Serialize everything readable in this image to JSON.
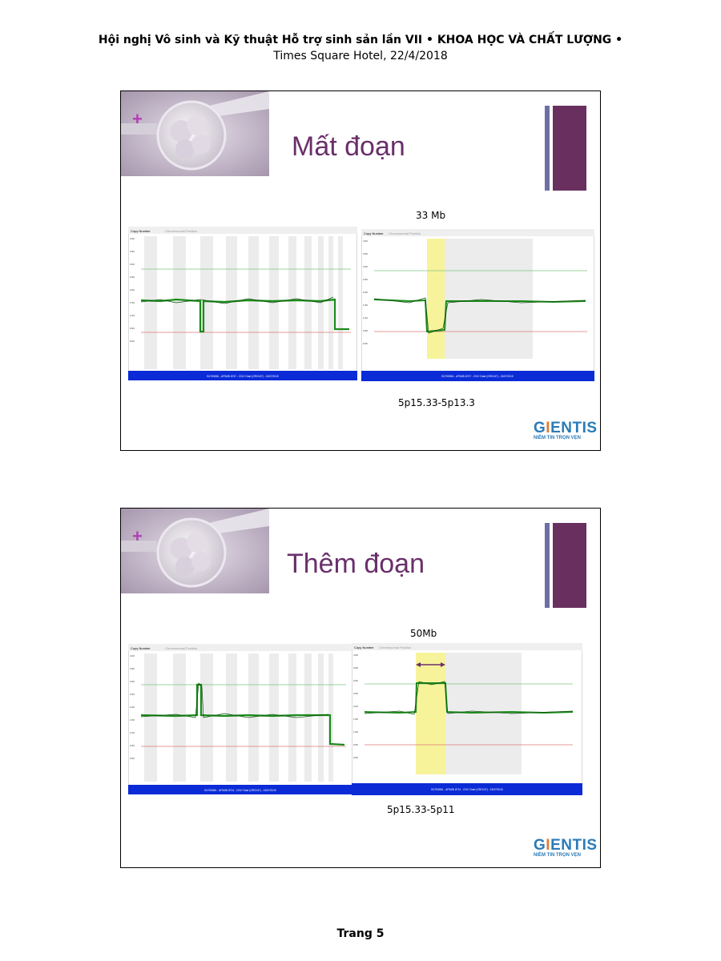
{
  "header": {
    "line1": "Hội nghị Vô sinh và Kỹ thuật Hỗ trợ sinh sản lần VII  •  KHOA HỌC VÀ CHẤT LƯỢNG •",
    "line2": "Times Square Hotel, 22/4/2018"
  },
  "slides": [
    {
      "title": "Mất đoạn",
      "size_label": "33 Mb",
      "region_label": "5p15.33-5p13.3",
      "plot_tab_label": "Copy Number",
      "plot_tab2_label": "Chromosomal Position",
      "plot_footer": "B17H0861 - AF5UBI 8747 - CNV Chart (GRCh37) - 24/07/2015",
      "logo": {
        "main_a": "G",
        "main_x": "I",
        "main_b": "ENTIS",
        "sub": "NIỀM TIN TRỌN VẸN"
      }
    },
    {
      "title": "Thêm đoạn",
      "size_label": "50Mb",
      "region_label": "5p15.33-5p11",
      "plot_tab_label": "Copy Number",
      "plot_tab2_label": "Chromosomal Position",
      "plot_footer": "B17H0861 - AF5UBI 8714 - CNV Chart (GRCh37) - 24/07/2015",
      "logo": {
        "main_a": "G",
        "main_x": "I",
        "main_b": "ENTIS",
        "sub": "NIỀM TIN TRỌN VẸN"
      }
    }
  ],
  "footer": {
    "page": "Trang 5"
  }
}
